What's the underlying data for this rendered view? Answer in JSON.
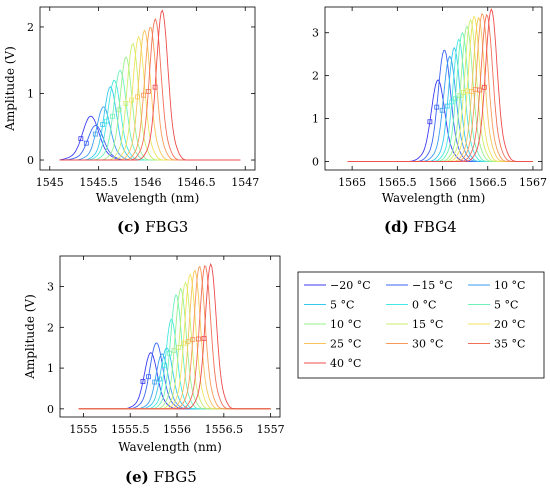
{
  "chart_data": [
    {
      "type": "line",
      "panel": "(c)",
      "caption_tag": "(c)",
      "caption_text": "FBG3",
      "xlabel": "Wavelength (nm)",
      "ylabel": "Amplitude (V)",
      "xlim": [
        1544.9,
        1547.1
      ],
      "ylim": [
        -0.15,
        2.3
      ],
      "xticks": [
        1545,
        1545.5,
        1546,
        1546.5,
        1547
      ],
      "xtick_labels": [
        "1545",
        "1545.5",
        "1546",
        "1546.5",
        "1547"
      ],
      "yticks": [
        0,
        1,
        2
      ],
      "ytick_labels": [
        "0",
        "1",
        "2"
      ],
      "x_range": [
        1545.1,
        1546.95
      ],
      "peaks": [
        {
          "center": 1545.42,
          "amp": 0.66,
          "width": 0.085
        },
        {
          "center": 1545.47,
          "amp": 0.52,
          "width": 0.08
        },
        {
          "center": 1545.55,
          "amp": 0.8,
          "width": 0.07
        },
        {
          "center": 1545.62,
          "amp": 1.1,
          "width": 0.065
        },
        {
          "center": 1545.66,
          "amp": 1.2,
          "width": 0.065
        },
        {
          "center": 1545.72,
          "amp": 1.35,
          "width": 0.065
        },
        {
          "center": 1545.78,
          "amp": 1.55,
          "width": 0.06
        },
        {
          "center": 1545.85,
          "amp": 1.75,
          "width": 0.06
        },
        {
          "center": 1545.91,
          "amp": 1.85,
          "width": 0.06
        },
        {
          "center": 1545.97,
          "amp": 1.95,
          "width": 0.06
        },
        {
          "center": 1546.03,
          "amp": 2.0,
          "width": 0.06
        },
        {
          "center": 1546.08,
          "amp": 2.12,
          "width": 0.06
        },
        {
          "center": 1546.15,
          "amp": 2.25,
          "width": 0.06
        }
      ]
    },
    {
      "type": "line",
      "panel": "(d)",
      "caption_tag": "(d)",
      "caption_text": "FBG4",
      "xlabel": "Wavelength (nm)",
      "ylabel": "",
      "xlim": [
        1564.7,
        1567.1
      ],
      "ylim": [
        -0.2,
        3.6
      ],
      "xticks": [
        1565,
        1565.5,
        1566,
        1566.5,
        1567
      ],
      "xtick_labels": [
        "1565",
        "1565.5",
        "1566",
        "1566.5",
        "1567"
      ],
      "yticks": [
        0,
        1,
        2,
        3
      ],
      "ytick_labels": [
        "0",
        "1",
        "2",
        "3"
      ],
      "x_range": [
        1564.95,
        1567.0
      ],
      "peaks": [
        {
          "center": 1565.95,
          "amp": 1.9,
          "width": 0.075
        },
        {
          "center": 1566.02,
          "amp": 2.6,
          "width": 0.07
        },
        {
          "center": 1566.08,
          "amp": 2.45,
          "width": 0.07
        },
        {
          "center": 1566.13,
          "amp": 2.65,
          "width": 0.065
        },
        {
          "center": 1566.18,
          "amp": 2.85,
          "width": 0.065
        },
        {
          "center": 1566.22,
          "amp": 3.0,
          "width": 0.065
        },
        {
          "center": 1566.27,
          "amp": 3.15,
          "width": 0.065
        },
        {
          "center": 1566.31,
          "amp": 3.3,
          "width": 0.065
        },
        {
          "center": 1566.35,
          "amp": 3.38,
          "width": 0.065
        },
        {
          "center": 1566.4,
          "amp": 3.35,
          "width": 0.065
        },
        {
          "center": 1566.44,
          "amp": 3.45,
          "width": 0.065
        },
        {
          "center": 1566.49,
          "amp": 3.42,
          "width": 0.065
        },
        {
          "center": 1566.54,
          "amp": 3.55,
          "width": 0.065
        }
      ]
    },
    {
      "type": "line",
      "panel": "(e)",
      "caption_tag": "(e)",
      "caption_text": "FBG5",
      "xlabel": "Wavelength (nm)",
      "ylabel": "Amplitude (V)",
      "xlim": [
        1554.75,
        1557.1
      ],
      "ylim": [
        -0.2,
        3.75
      ],
      "xticks": [
        1555,
        1555.5,
        1556,
        1556.5,
        1557
      ],
      "xtick_labels": [
        "1555",
        "1555.5",
        "1556",
        "1556.5",
        "1557"
      ],
      "yticks": [
        0,
        1,
        2,
        3
      ],
      "ytick_labels": [
        "0",
        "1",
        "2",
        "3"
      ],
      "x_range": [
        1554.95,
        1557.0
      ],
      "peaks": [
        {
          "center": 1555.72,
          "amp": 1.38,
          "width": 0.07
        },
        {
          "center": 1555.78,
          "amp": 1.62,
          "width": 0.07
        },
        {
          "center": 1555.84,
          "amp": 1.35,
          "width": 0.065
        },
        {
          "center": 1555.89,
          "amp": 1.5,
          "width": 0.065
        },
        {
          "center": 1555.94,
          "amp": 2.2,
          "width": 0.06
        },
        {
          "center": 1555.99,
          "amp": 2.8,
          "width": 0.06
        },
        {
          "center": 1556.04,
          "amp": 2.95,
          "width": 0.06
        },
        {
          "center": 1556.09,
          "amp": 3.1,
          "width": 0.06
        },
        {
          "center": 1556.14,
          "amp": 3.3,
          "width": 0.06
        },
        {
          "center": 1556.19,
          "amp": 3.4,
          "width": 0.06
        },
        {
          "center": 1556.24,
          "amp": 3.5,
          "width": 0.06
        },
        {
          "center": 1556.3,
          "amp": 3.52,
          "width": 0.06
        },
        {
          "center": 1556.36,
          "amp": 3.55,
          "width": 0.06
        }
      ]
    }
  ],
  "legend": {
    "entries": [
      {
        "label": "−20 °C",
        "color": "#3b3bf2"
      },
      {
        "label": "−15 °C",
        "color": "#3a64f5"
      },
      {
        "label": "10 °C",
        "color": "#3b9ef0"
      },
      {
        "label": "5 °C",
        "color": "#36c8ee"
      },
      {
        "label": "0 °C",
        "color": "#45e8e2"
      },
      {
        "label": "5 °C",
        "color": "#6df2b8"
      },
      {
        "label": "10 °C",
        "color": "#9af08e"
      },
      {
        "label": "15 °C",
        "color": "#cdee6c"
      },
      {
        "label": "20 °C",
        "color": "#f0e45c"
      },
      {
        "label": "25 °C",
        "color": "#f7c45a"
      },
      {
        "label": "30 °C",
        "color": "#f79a58"
      },
      {
        "label": "35 °C",
        "color": "#f26f57"
      },
      {
        "label": "40 °C",
        "color": "#ef4b4b"
      }
    ]
  }
}
